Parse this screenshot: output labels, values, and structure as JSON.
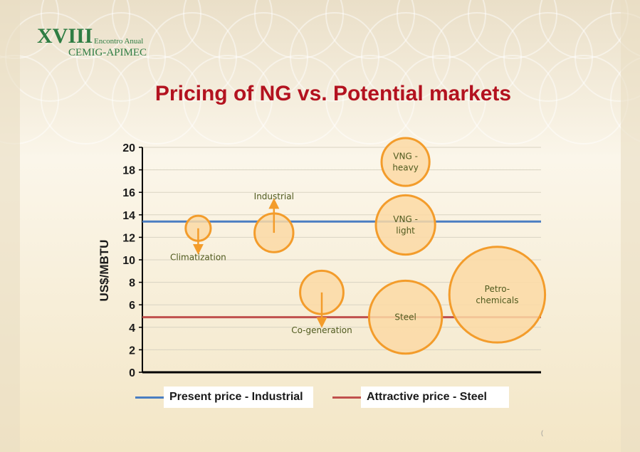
{
  "logo": {
    "numeral": "XVIII",
    "small": "Encontro Anual",
    "sub": "CEMIG-APIMEC"
  },
  "slide_title": "Pricing of NG vs. Potential markets",
  "colors": {
    "title": "#b3121f",
    "present_line": "#4a7ec2",
    "attractive_line": "#c0504d",
    "bubble_fill": "#fbd9a4",
    "bubble_stroke": "#f39c2b",
    "label_text": "#4f5a1e"
  },
  "chart_data": {
    "type": "bubble",
    "ylabel": "US$/MBTU",
    "ylim": [
      0,
      20
    ],
    "yticks": [
      "0",
      "2",
      "4",
      "6",
      "8",
      "10",
      "12",
      "14",
      "16",
      "18",
      "20"
    ],
    "grid": true,
    "legend_position": "bottom",
    "reference_lines": [
      {
        "name": "Present price - Industrial",
        "value": 13.4,
        "color": "#4a7ec2"
      },
      {
        "name": "Attractive price - Steel",
        "value": 4.9,
        "color": "#c0504d"
      }
    ],
    "bubbles": [
      {
        "label": "Climatization",
        "x": 1.4,
        "y": 12.8,
        "size": 1.1,
        "arrow": "down",
        "label_position": "below"
      },
      {
        "label": "Industrial",
        "x": 3.3,
        "y": 12.4,
        "size": 1.7,
        "arrow": "up",
        "label_position": "above"
      },
      {
        "label": "Co-generation",
        "x": 4.5,
        "y": 7.1,
        "size": 1.9,
        "arrow": "down",
        "label_position": "below"
      },
      {
        "label": "VNG - heavy",
        "x": 6.6,
        "y": 18.7,
        "size": 2.1,
        "arrow": "none",
        "label_position": "inside"
      },
      {
        "label": "VNG - light",
        "x": 6.6,
        "y": 13.1,
        "size": 2.6,
        "arrow": "none",
        "label_position": "inside"
      },
      {
        "label": "Steel",
        "x": 6.6,
        "y": 4.9,
        "size": 3.2,
        "arrow": "none",
        "label_position": "inside"
      },
      {
        "label": "Petro-chemicals",
        "x": 8.9,
        "y": 6.9,
        "size": 4.2,
        "arrow": "none",
        "label_position": "inside"
      }
    ]
  },
  "page_mark": "("
}
